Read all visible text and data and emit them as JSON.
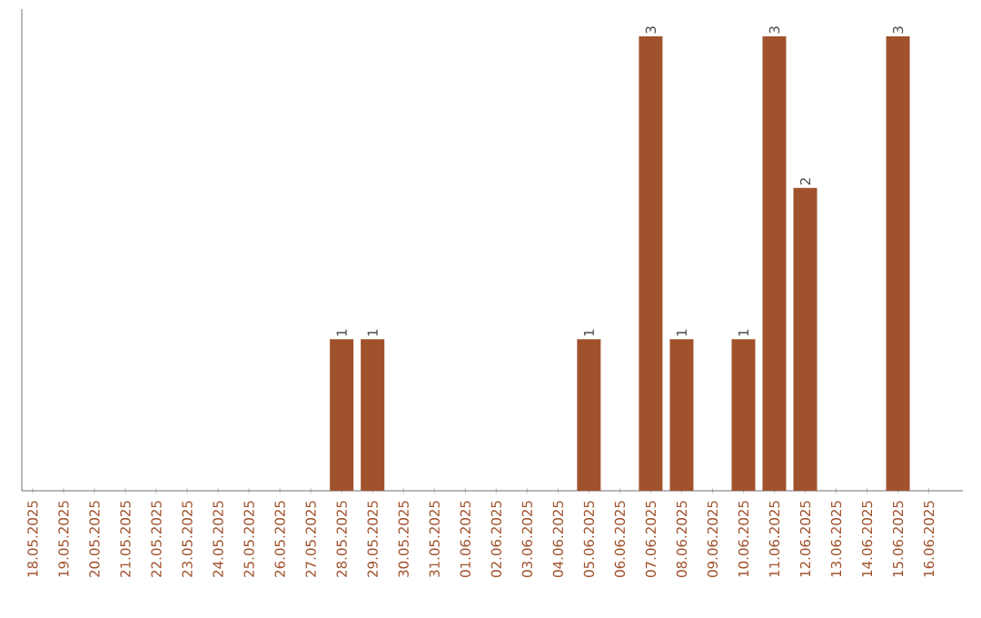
{
  "chart_data": {
    "type": "bar",
    "categories": [
      "18.05.2025",
      "19.05.2025",
      "20.05.2025",
      "21.05.2025",
      "22.05.2025",
      "23.05.2025",
      "24.05.2025",
      "25.05.2025",
      "26.05.2025",
      "27.05.2025",
      "28.05.2025",
      "29.05.2025",
      "30.05.2025",
      "31.05.2025",
      "01.06.2025",
      "02.06.2025",
      "03.06.2025",
      "04.06.2025",
      "05.06.2025",
      "06.06.2025",
      "07.06.2025",
      "08.06.2025",
      "09.06.2025",
      "10.06.2025",
      "11.06.2025",
      "12.06.2025",
      "13.06.2025",
      "14.06.2025",
      "15.06.2025",
      "16.06.2025"
    ],
    "values": [
      0,
      0,
      0,
      0,
      0,
      0,
      0,
      0,
      0,
      0,
      1,
      1,
      0,
      0,
      0,
      0,
      0,
      0,
      1,
      0,
      3,
      1,
      0,
      1,
      3,
      2,
      0,
      0,
      3,
      0
    ],
    "value_labels": [
      null,
      null,
      null,
      null,
      null,
      null,
      null,
      null,
      null,
      null,
      "1",
      "1",
      null,
      null,
      null,
      null,
      null,
      null,
      "1",
      null,
      "3",
      "1",
      null,
      "1",
      "3",
      "2",
      null,
      null,
      "3",
      null
    ],
    "color": "#a0522d",
    "tick_labels": "x",
    "grid": false
  }
}
